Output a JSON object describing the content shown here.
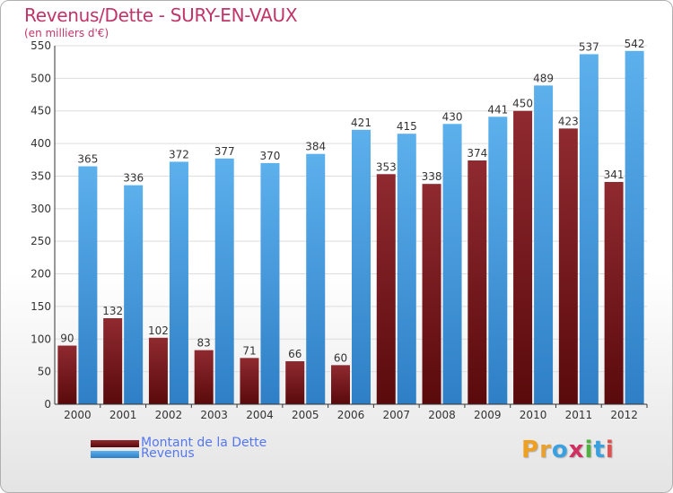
{
  "title": "Revenus/Dette - SURY-EN-VAUX",
  "subtitle": "(en milliers d'€)",
  "legend": {
    "debt_label": "Montant de la Dette",
    "revenue_label": "Revenus"
  },
  "logo": "Proxiti",
  "colors": {
    "debt": "#7a1a1e",
    "revenue": "#4a9fe0",
    "title": "#c0346a",
    "legend_text": "#5577ee"
  },
  "chart_data": {
    "type": "bar",
    "title": "Revenus/Dette - SURY-EN-VAUX",
    "subtitle": "(en milliers d'€)",
    "categories": [
      "2000",
      "2001",
      "2002",
      "2003",
      "2004",
      "2005",
      "2006",
      "2007",
      "2008",
      "2009",
      "2010",
      "2011",
      "2012"
    ],
    "series": [
      {
        "name": "Montant de la Dette",
        "values": [
          90,
          132,
          102,
          83,
          71,
          66,
          60,
          353,
          338,
          374,
          450,
          423,
          341
        ]
      },
      {
        "name": "Revenus",
        "values": [
          365,
          336,
          372,
          377,
          370,
          384,
          421,
          415,
          430,
          441,
          489,
          537,
          542
        ]
      }
    ],
    "ylim": [
      0,
      550
    ],
    "yticks": [
      0,
      50,
      100,
      150,
      200,
      250,
      300,
      350,
      400,
      450,
      500,
      550
    ],
    "grid": true,
    "legend_position": "bottom-left"
  }
}
